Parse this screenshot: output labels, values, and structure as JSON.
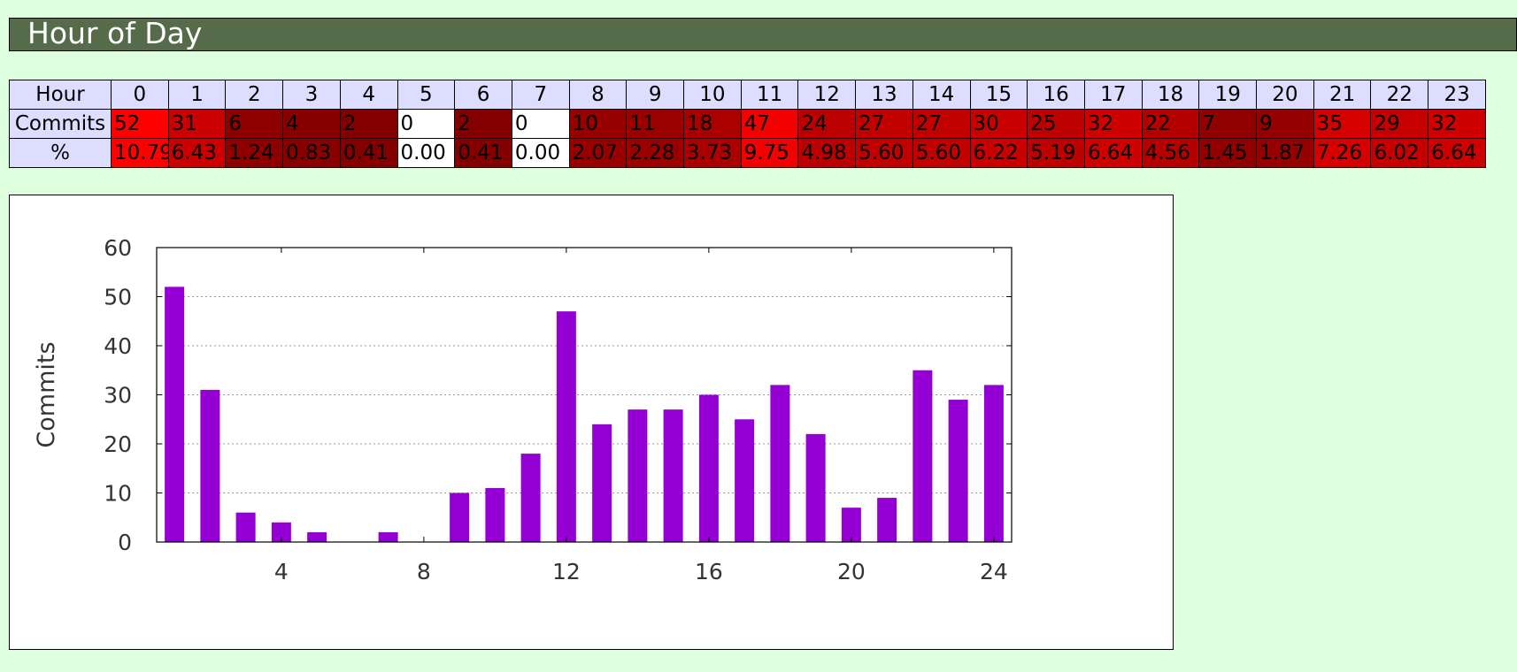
{
  "section": {
    "title": "Hour of Day"
  },
  "table": {
    "row_labels": {
      "hour": "Hour",
      "commits": "Commits",
      "percent": "%"
    },
    "hours": [
      "0",
      "1",
      "2",
      "3",
      "4",
      "5",
      "6",
      "7",
      "8",
      "9",
      "10",
      "11",
      "12",
      "13",
      "14",
      "15",
      "16",
      "17",
      "18",
      "19",
      "20",
      "21",
      "22",
      "23"
    ],
    "commits": [
      "52",
      "31",
      "6",
      "4",
      "2",
      "0",
      "2",
      "0",
      "10",
      "11",
      "18",
      "47",
      "24",
      "27",
      "27",
      "30",
      "25",
      "32",
      "22",
      "7",
      "9",
      "35",
      "29",
      "32"
    ],
    "percent": [
      "10.79",
      "6.43",
      "1.24",
      "0.83",
      "0.41",
      "0.00",
      "0.41",
      "0.00",
      "2.07",
      "2.28",
      "3.73",
      "9.75",
      "4.98",
      "5.60",
      "5.60",
      "6.22",
      "5.19",
      "6.64",
      "4.56",
      "1.45",
      "1.87",
      "7.26",
      "6.02",
      "6.64"
    ],
    "colors": {
      "header_bg": "#ddddff",
      "zero_bg": "#ffffff",
      "max_red": "#ff0000"
    }
  },
  "chart_data": {
    "type": "bar",
    "x": [
      1,
      2,
      3,
      4,
      5,
      6,
      7,
      8,
      9,
      10,
      11,
      12,
      13,
      14,
      15,
      16,
      17,
      18,
      19,
      20,
      21,
      22,
      23,
      24
    ],
    "values": [
      52,
      31,
      6,
      4,
      2,
      0,
      2,
      0,
      10,
      11,
      18,
      47,
      24,
      27,
      27,
      30,
      25,
      32,
      22,
      7,
      9,
      35,
      29,
      32
    ],
    "ylabel": "Commits",
    "xlabel": "",
    "title": "",
    "xlim": [
      0.5,
      24.5
    ],
    "ylim": [
      0,
      60
    ],
    "xticks": [
      4,
      8,
      12,
      16,
      20,
      24
    ],
    "yticks": [
      0,
      10,
      20,
      30,
      40,
      50,
      60
    ],
    "grid": "horizontal dotted",
    "bar_color": "#9400d3"
  }
}
